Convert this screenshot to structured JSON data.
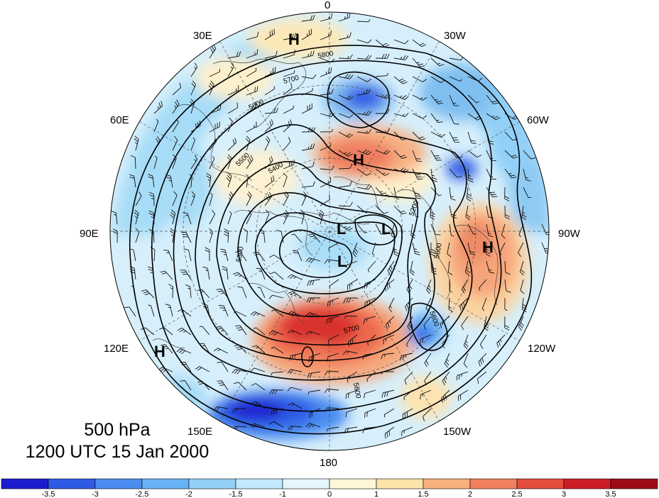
{
  "title": {
    "level": "500 hPa",
    "datetime": "1200 UTC 15 Jan 2000"
  },
  "longitude_labels": [
    "0",
    "30W",
    "60W",
    "90W",
    "120W",
    "150W",
    "180",
    "150E",
    "120E",
    "90E",
    "60E",
    "30E"
  ],
  "pressure_centers": [
    {
      "type": "H"
    },
    {
      "type": "H"
    },
    {
      "type": "H"
    },
    {
      "type": "H"
    },
    {
      "type": "L"
    },
    {
      "type": "L"
    },
    {
      "type": "L"
    }
  ],
  "contour_labels": [
    "5800",
    "5700",
    "5600",
    "5500",
    "5400",
    "5300",
    "5200",
    "5600",
    "5700",
    "5800",
    "5600"
  ],
  "colorbar": {
    "ticks": [
      "-3.5",
      "-3",
      "-2.5",
      "-2",
      "-1.5",
      "-1",
      "0",
      "1",
      "1.5",
      "2",
      "2.5",
      "3",
      "3.5"
    ],
    "colors": [
      "#1c1ccf",
      "#2f5ae6",
      "#4a8cf0",
      "#68b1f5",
      "#92d0f8",
      "#c2e9fb",
      "#e4f5fd",
      "#fdf6d8",
      "#fce3a8",
      "#f8b07e",
      "#f2805f",
      "#e44c3e",
      "#cc1c24",
      "#9e0c18"
    ]
  },
  "colors": {
    "contour": "#000000",
    "coast": "#444444",
    "grid": "#555555"
  }
}
